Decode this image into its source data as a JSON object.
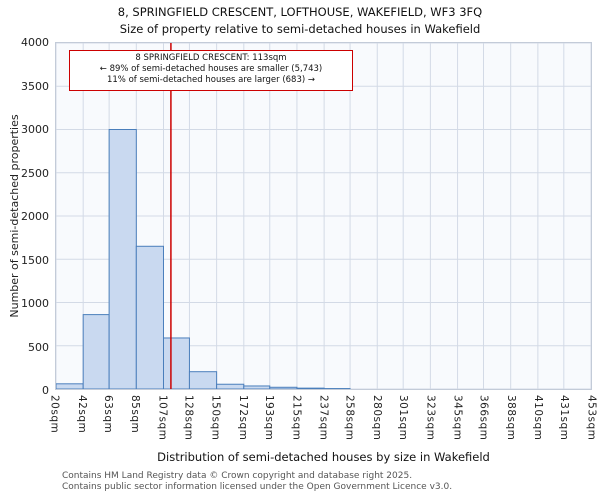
{
  "annotation": {
    "line1": "8 SPRINGFIELD CRESCENT: 113sqm",
    "line2": "← 89% of semi-detached houses are smaller (5,743)",
    "line3": "11% of semi-detached houses are larger (683) →"
  },
  "footer": {
    "line1": "Contains HM Land Registry data © Crown copyright and database right 2025.",
    "line2": "Contains public sector information licensed under the Open Government Licence v3.0."
  },
  "chart_data": {
    "type": "bar",
    "title": "8, SPRINGFIELD CRESCENT, LOFTHOUSE, WAKEFIELD, WF3 3FQ",
    "subtitle": "Size of property relative to semi-detached houses in Wakefield",
    "xlabel": "Distribution of semi-detached houses by size in Wakefield",
    "ylabel": "Number of semi-detached properties",
    "bin_edges_sqm": [
      20,
      42,
      63,
      85,
      107,
      128,
      150,
      172,
      193,
      215,
      237,
      258,
      280,
      301,
      323,
      345,
      366,
      388,
      410,
      431,
      453
    ],
    "x_tick_labels": [
      "20sqm",
      "42sqm",
      "63sqm",
      "85sqm",
      "107sqm",
      "128sqm",
      "150sqm",
      "172sqm",
      "193sqm",
      "215sqm",
      "237sqm",
      "258sqm",
      "280sqm",
      "301sqm",
      "323sqm",
      "345sqm",
      "366sqm",
      "388sqm",
      "410sqm",
      "431sqm",
      "453sqm"
    ],
    "values": [
      60,
      860,
      3000,
      1650,
      590,
      200,
      55,
      35,
      20,
      10,
      5,
      0,
      0,
      0,
      0,
      0,
      0,
      0,
      0,
      0
    ],
    "y_ticks": [
      0,
      500,
      1000,
      1500,
      2000,
      2500,
      3000,
      3500,
      4000
    ],
    "ylim": [
      0,
      4000
    ],
    "xlim_sqm": [
      20,
      453
    ],
    "marker_value_sqm": 113,
    "grid": true,
    "legend": "none",
    "colors": {
      "bar_fill": "#c9d9f0",
      "bar_edge": "#4a7ebb",
      "marker_line": "#cc0000",
      "grid_line": "#d3dae6",
      "annotation_border": "#cc0000"
    }
  }
}
